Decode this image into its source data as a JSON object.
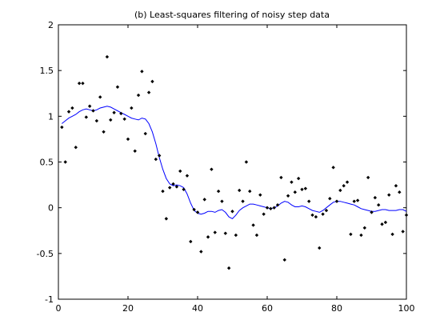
{
  "chart_data": {
    "type": "scatter",
    "title": "(b) Least-squares filtering of noisy step data",
    "xlabel": "",
    "ylabel": "",
    "xlim": [
      0,
      100
    ],
    "ylim": [
      -1,
      2
    ],
    "x_ticks": [
      0,
      20,
      40,
      60,
      80,
      100
    ],
    "x_tick_labels": [
      "0",
      "20",
      "40",
      "60",
      "80",
      "100"
    ],
    "y_ticks": [
      -1,
      -0.5,
      0,
      0.5,
      1,
      1.5,
      2
    ],
    "y_tick_labels": [
      "-1",
      "-0.5",
      "0",
      "0.5",
      "1",
      "1.5",
      "2"
    ],
    "grid": false,
    "legend": "none",
    "marker_color": "#000000",
    "line_color": "#0000ff",
    "series": [
      {
        "kind": "scatter",
        "marker": "diamond",
        "x": [
          1,
          2,
          3,
          4,
          5,
          6,
          7,
          8,
          9,
          10,
          11,
          12,
          13,
          14,
          15,
          16,
          17,
          18,
          19,
          20,
          21,
          22,
          23,
          24,
          25,
          26,
          27,
          28,
          29,
          30,
          31,
          32,
          33,
          34,
          35,
          36,
          37,
          38,
          39,
          40,
          41,
          42,
          43,
          44,
          45,
          46,
          47,
          48,
          49,
          50,
          51,
          52,
          53,
          54,
          55,
          56,
          57,
          58,
          59,
          60,
          61,
          62,
          63,
          64,
          65,
          66,
          67,
          68,
          69,
          70,
          71,
          72,
          73,
          74,
          75,
          76,
          77,
          78,
          79,
          80,
          81,
          82,
          83,
          84,
          85,
          86,
          87,
          88,
          89,
          90,
          91,
          92,
          93,
          94,
          95,
          96,
          97,
          98,
          99,
          100
        ],
        "y": [
          0.88,
          0.5,
          1.05,
          1.09,
          0.66,
          1.36,
          1.36,
          0.99,
          1.11,
          1.06,
          0.95,
          1.21,
          0.83,
          1.65,
          0.96,
          1.04,
          1.32,
          1.03,
          0.97,
          0.75,
          1.09,
          0.62,
          1.23,
          1.49,
          0.81,
          1.26,
          1.38,
          0.53,
          0.57,
          0.18,
          -0.12,
          0.22,
          0.26,
          0.23,
          0.4,
          0.2,
          0.35,
          -0.37,
          -0.02,
          -0.05,
          -0.48,
          0.09,
          -0.32,
          0.42,
          -0.27,
          0.18,
          0.07,
          -0.28,
          -0.66,
          -0.04,
          -0.3,
          0.19,
          0.07,
          0.5,
          0.18,
          -0.19,
          -0.3,
          0.14,
          -0.07,
          0.0,
          -0.01,
          0.0,
          0.03,
          0.33,
          -0.57,
          0.13,
          0.28,
          0.17,
          0.32,
          0.2,
          0.21,
          0.07,
          -0.08,
          -0.1,
          -0.44,
          -0.07,
          -0.03,
          0.1,
          0.44,
          0.07,
          0.19,
          0.24,
          0.28,
          -0.29,
          0.07,
          0.08,
          -0.3,
          -0.22,
          0.33,
          -0.05,
          0.11,
          0.03,
          -0.18,
          -0.16,
          0.14,
          -0.29,
          0.24,
          0.17,
          -0.26,
          -0.08
        ]
      },
      {
        "kind": "line",
        "x": [
          1,
          2,
          3,
          4,
          5,
          6,
          7,
          8,
          9,
          10,
          11,
          12,
          13,
          14,
          15,
          16,
          17,
          18,
          19,
          20,
          21,
          22,
          23,
          24,
          25,
          26,
          27,
          28,
          29,
          30,
          31,
          32,
          33,
          34,
          35,
          36,
          37,
          38,
          39,
          40,
          41,
          42,
          43,
          44,
          45,
          46,
          47,
          48,
          49,
          50,
          51,
          52,
          53,
          54,
          55,
          56,
          57,
          58,
          59,
          60,
          61,
          62,
          63,
          64,
          65,
          66,
          67,
          68,
          69,
          70,
          71,
          72,
          73,
          74,
          75,
          76,
          77,
          78,
          79,
          80,
          81,
          82,
          83,
          84,
          85,
          86,
          87,
          88,
          89,
          90,
          91,
          92,
          93,
          94,
          95,
          96,
          97,
          98,
          99,
          100
        ],
        "y": [
          0.92,
          0.95,
          0.98,
          1.0,
          1.02,
          1.05,
          1.07,
          1.08,
          1.07,
          1.06,
          1.07,
          1.09,
          1.1,
          1.11,
          1.1,
          1.08,
          1.06,
          1.04,
          1.02,
          1.0,
          0.98,
          0.97,
          0.96,
          0.98,
          0.97,
          0.92,
          0.83,
          0.7,
          0.55,
          0.42,
          0.32,
          0.26,
          0.24,
          0.25,
          0.24,
          0.22,
          0.15,
          0.05,
          -0.03,
          -0.06,
          -0.07,
          -0.06,
          -0.04,
          -0.04,
          -0.05,
          -0.03,
          -0.02,
          -0.05,
          -0.1,
          -0.12,
          -0.08,
          -0.03,
          0.0,
          0.02,
          0.04,
          0.04,
          0.03,
          0.02,
          0.01,
          0.0,
          -0.01,
          0.0,
          0.02,
          0.05,
          0.07,
          0.06,
          0.03,
          0.01,
          0.01,
          0.02,
          0.01,
          -0.01,
          -0.03,
          -0.04,
          -0.05,
          -0.03,
          0.0,
          0.03,
          0.06,
          0.07,
          0.07,
          0.06,
          0.05,
          0.04,
          0.03,
          0.01,
          -0.01,
          -0.02,
          -0.03,
          -0.04,
          -0.04,
          -0.03,
          -0.02,
          -0.02,
          -0.03,
          -0.03,
          -0.03,
          -0.02,
          -0.02,
          -0.04
        ]
      }
    ]
  }
}
